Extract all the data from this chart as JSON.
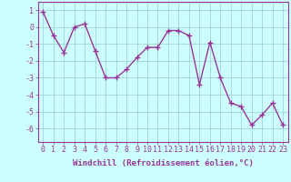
{
  "x": [
    0,
    1,
    2,
    3,
    4,
    5,
    6,
    7,
    8,
    9,
    10,
    11,
    12,
    13,
    14,
    15,
    16,
    17,
    18,
    19,
    20,
    21,
    22,
    23
  ],
  "y": [
    0.9,
    -0.5,
    -1.5,
    0.0,
    0.2,
    -1.4,
    -3.0,
    -3.0,
    -2.5,
    -1.8,
    -1.2,
    -1.2,
    -0.2,
    -0.2,
    -0.5,
    -3.4,
    -0.9,
    -3.0,
    -4.5,
    -4.7,
    -5.8,
    -5.2,
    -4.5,
    -5.8
  ],
  "line_color": "#993399",
  "marker": "+",
  "markersize": 4,
  "linewidth": 1.0,
  "bg_color": "#ccffff",
  "grid_color": "#99cccc",
  "xlabel": "Windchill (Refroidissement éolien,°C)",
  "xlabel_fontsize": 6.5,
  "tick_fontsize": 6.0,
  "ylim": [
    -6.8,
    1.5
  ],
  "xlim": [
    -0.5,
    23.5
  ],
  "yticks": [
    1,
    0,
    -1,
    -2,
    -3,
    -4,
    -5,
    -6
  ],
  "xticks": [
    0,
    1,
    2,
    3,
    4,
    5,
    6,
    7,
    8,
    9,
    10,
    11,
    12,
    13,
    14,
    15,
    16,
    17,
    18,
    19,
    20,
    21,
    22,
    23
  ]
}
